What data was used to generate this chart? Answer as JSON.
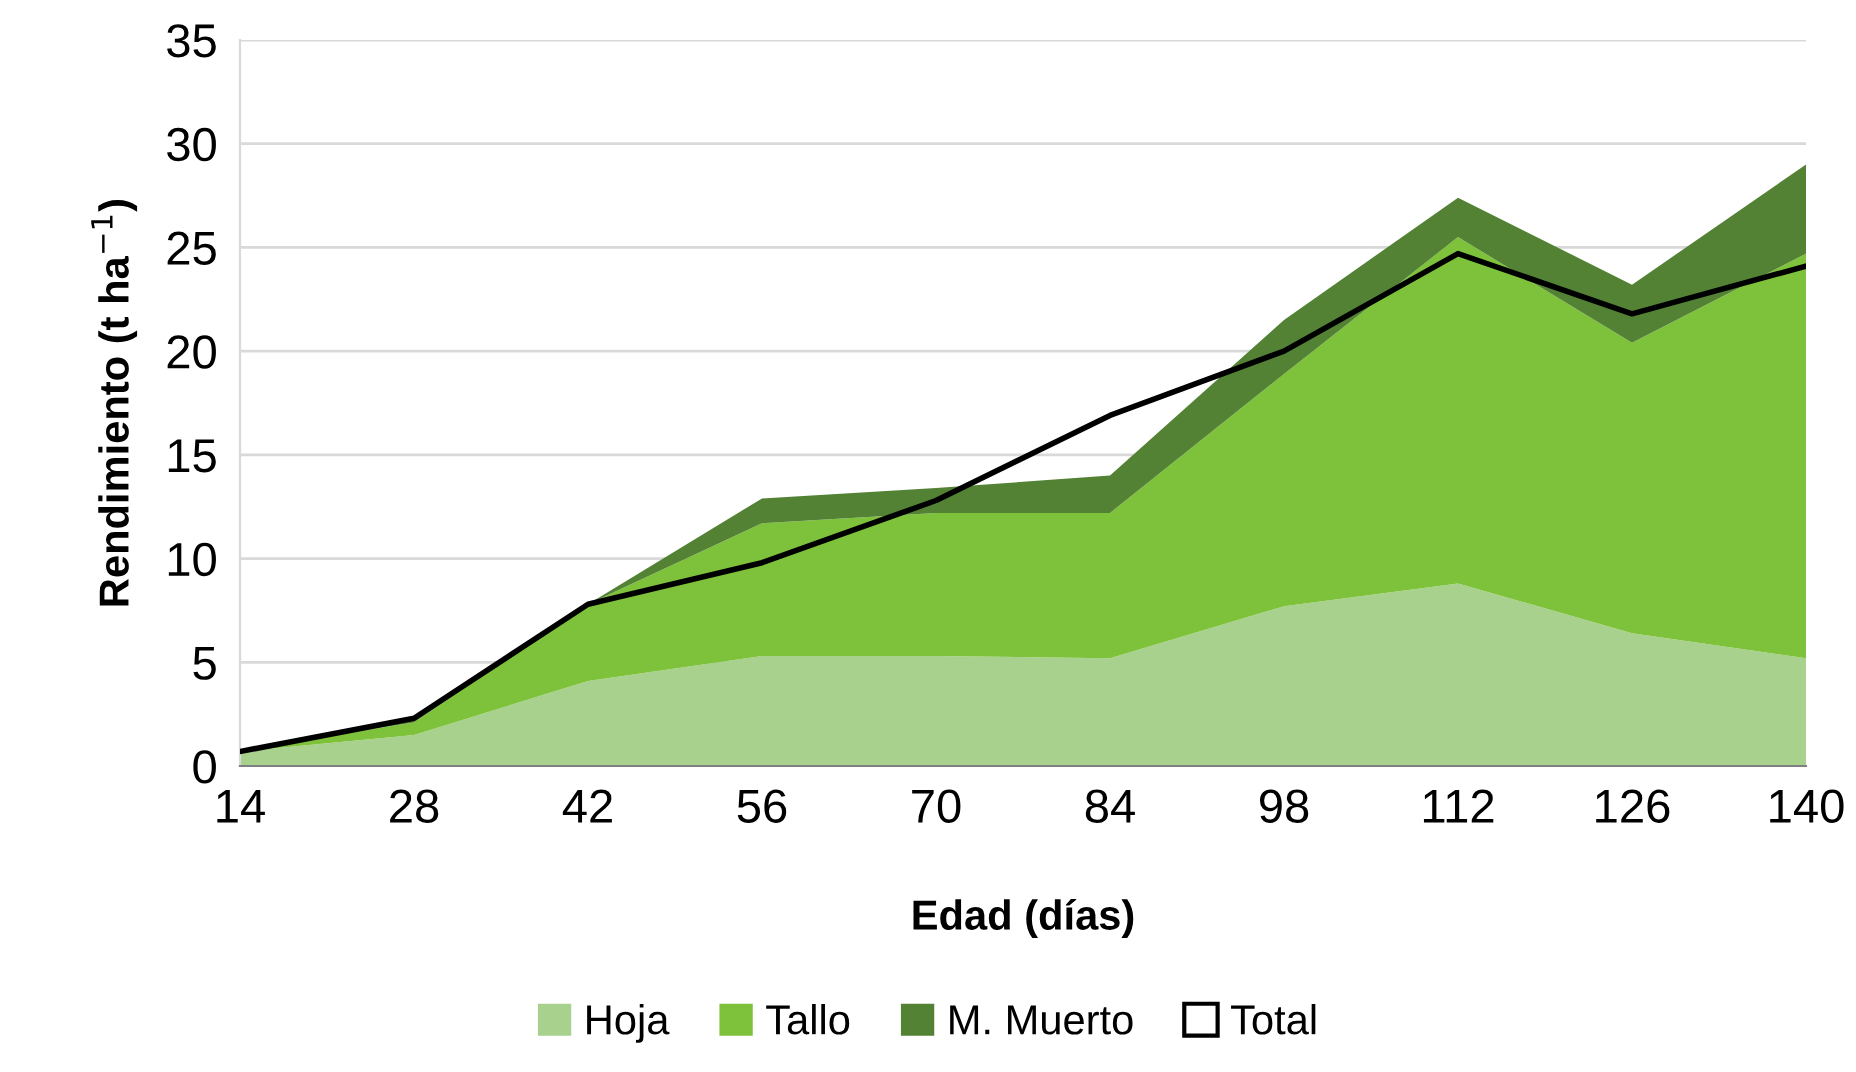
{
  "chart_data": {
    "type": "area",
    "stacked": true,
    "xlabel": "Edad (días)",
    "ylabel": "Rendimiento (t ha$^{−1}$)",
    "categories": [
      "14",
      "28",
      "42",
      "56",
      "70",
      "84",
      "98",
      "112",
      "126",
      "140"
    ],
    "ylim": [
      0,
      35
    ],
    "yticks": [
      0,
      5,
      10,
      15,
      20,
      25,
      30,
      35
    ],
    "grid": "y",
    "legend": "bottom",
    "series": [
      {
        "name": "Hoja",
        "color": "#a9d18e",
        "values": [
          0.7,
          1.5,
          4.1,
          5.3,
          5.3,
          5.2,
          7.7,
          8.8,
          6.4,
          5.2
        ]
      },
      {
        "name": "Tallo",
        "color": "#7dc23a",
        "values": [
          0.1,
          0.6,
          3.7,
          6.4,
          6.9,
          7.0,
          11.2,
          16.7,
          14.0,
          19.5
        ]
      },
      {
        "name": "M. Muerto",
        "color": "#548235",
        "values": [
          0,
          0.2,
          0,
          1.2,
          1.2,
          1.8,
          2.6,
          1.9,
          2.8,
          4.3
        ]
      },
      {
        "name": "Total",
        "type": "line",
        "color": "#000000",
        "values": [
          0.7,
          2.3,
          7.8,
          9.8,
          12.8,
          16.9,
          20.0,
          24.7,
          21.8,
          24.1
        ]
      }
    ]
  }
}
